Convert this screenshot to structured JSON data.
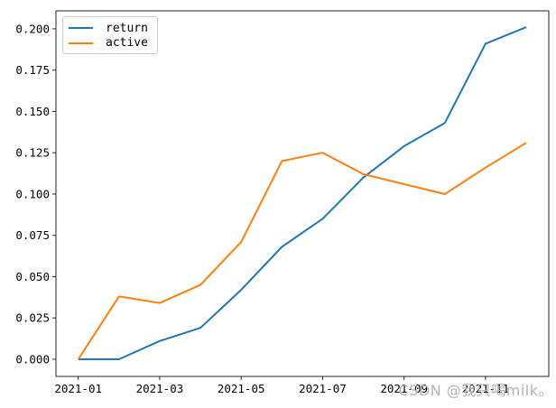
{
  "figure": {
    "background": "#ffffff"
  },
  "watermark": {
    "text": "CSDN @我只喝milk。",
    "color": "#b3b3b3"
  },
  "chart_data": {
    "type": "line",
    "title": "",
    "xlabel": "",
    "ylabel": "",
    "grid": false,
    "x": [
      "2021-01",
      "2021-02",
      "2021-03",
      "2021-04",
      "2021-05",
      "2021-06",
      "2021-07",
      "2021-08",
      "2021-09",
      "2021-10",
      "2021-11",
      "2021-12"
    ],
    "series": [
      {
        "name": "return",
        "color": "#1f77b4",
        "values": [
          0.0,
          0.0,
          0.011,
          0.019,
          0.042,
          0.068,
          0.085,
          0.11,
          0.129,
          0.143,
          0.191,
          0.201
        ]
      },
      {
        "name": "active",
        "color": "#ff7f0e",
        "values": [
          0.0,
          0.038,
          0.034,
          0.045,
          0.071,
          0.12,
          0.125,
          0.112,
          0.106,
          0.1,
          0.116,
          0.131
        ]
      }
    ],
    "xtick_labels": [
      "2021-01",
      "2021-03",
      "2021-05",
      "2021-07",
      "2021-09",
      "2021-11"
    ],
    "xtick_positions": [
      0,
      2,
      4,
      6,
      8,
      10
    ],
    "ytick_labels": [
      "0.000",
      "0.025",
      "0.050",
      "0.075",
      "0.100",
      "0.125",
      "0.150",
      "0.175",
      "0.200"
    ],
    "ytick_values": [
      0.0,
      0.025,
      0.05,
      0.075,
      0.1,
      0.125,
      0.15,
      0.175,
      0.2
    ],
    "xlim": [
      -0.547,
      11.553
    ],
    "ylim": [
      -0.0104,
      0.2109
    ],
    "legend": {
      "position": "upper-left",
      "entries": [
        "return",
        "active"
      ]
    },
    "axis_color": "#262626",
    "tick_label_color": "#000000"
  }
}
